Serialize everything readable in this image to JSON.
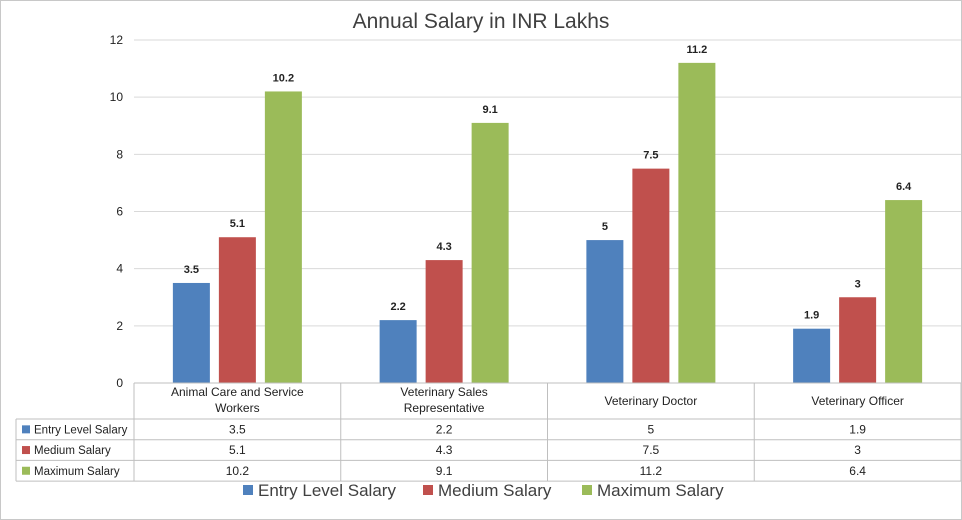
{
  "chart_data": {
    "type": "bar",
    "title": "Annual Salary in INR Lakhs",
    "categories": [
      [
        "Animal Care and Service",
        "Workers"
      ],
      [
        "Veterinary Sales",
        "Representative"
      ],
      [
        "Veterinary Doctor"
      ],
      [
        "Veterinary Officer"
      ]
    ],
    "series": [
      {
        "name": "Entry Level Salary",
        "color": "#4f81bd",
        "values": [
          3.5,
          2.2,
          5,
          1.9
        ]
      },
      {
        "name": "Medium Salary",
        "color": "#c0504d",
        "values": [
          5.1,
          4.3,
          7.5,
          3
        ]
      },
      {
        "name": "Maximum Salary",
        "color": "#9bbb59",
        "values": [
          10.2,
          9.1,
          11.2,
          6.4
        ]
      }
    ],
    "ylim": [
      0,
      12
    ],
    "yticks": [
      0,
      2,
      4,
      6,
      8,
      10,
      12
    ],
    "grid": true,
    "data_table": true,
    "legend": "bottom"
  }
}
